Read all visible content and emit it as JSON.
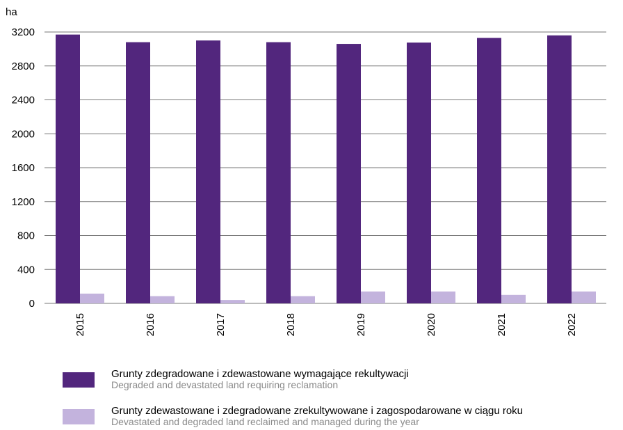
{
  "chart_data": {
    "type": "bar",
    "ylabel": "ha",
    "ylim": [
      0,
      3200
    ],
    "yticks": [
      0,
      400,
      800,
      1200,
      1600,
      2000,
      2400,
      2800,
      3200
    ],
    "categories": [
      "2015",
      "2016",
      "2017",
      "2018",
      "2019",
      "2020",
      "2021",
      "2022"
    ],
    "series": [
      {
        "name": "Grunty zdegradowane i zdewastowane wymagające rekultywacji",
        "name_en": "Degraded and devastated land requiring reclamation",
        "color": "#52267d",
        "values": [
          3170,
          3080,
          3100,
          3080,
          3060,
          3075,
          3130,
          3160
        ]
      },
      {
        "name": "Grunty zdewastowane i zdegradowane zrekultywowane i zagospodarowane w ciągu roku",
        "name_en": "Devastated and degraded land reclaimed and managed during the year",
        "color": "#c3b3dd",
        "values": [
          115,
          85,
          40,
          85,
          140,
          140,
          100,
          140
        ]
      }
    ],
    "grid": true,
    "legend_position": "bottom"
  }
}
